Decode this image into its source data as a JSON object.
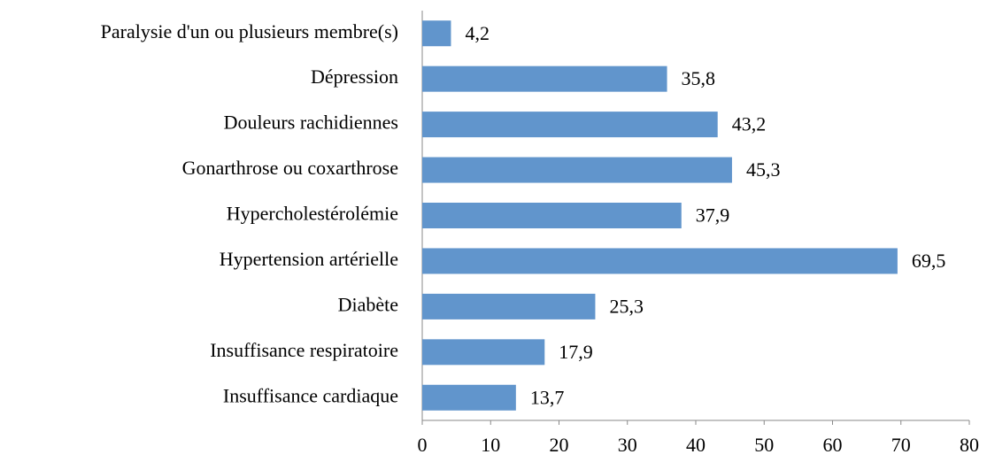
{
  "chart_data": {
    "type": "bar",
    "orientation": "horizontal",
    "categories": [
      "Paralysie d'un ou plusieurs membre(s)",
      "Dépression",
      "Douleurs rachidiennes",
      "Gonarthrose ou coxarthrose",
      "Hypercholestérolémie",
      "Hypertension artérielle",
      "Diabète",
      "Insuffisance respiratoire",
      "Insuffisance cardiaque"
    ],
    "values": [
      4.2,
      35.8,
      43.2,
      45.3,
      37.9,
      69.5,
      25.3,
      17.9,
      13.7
    ],
    "value_labels": [
      "4,2",
      "35,8",
      "43,2",
      "45,3",
      "37,9",
      "69,5",
      "25,3",
      "17,9",
      "13,7"
    ],
    "color": "#6195cc",
    "xlim": [
      0,
      80
    ],
    "xticks": [
      0,
      10,
      20,
      30,
      40,
      50,
      60,
      70,
      80
    ],
    "grid": false
  }
}
